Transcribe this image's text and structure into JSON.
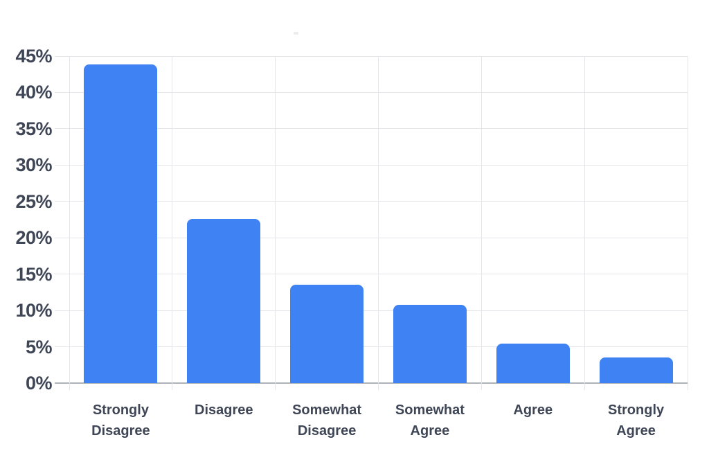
{
  "chart_data": {
    "type": "bar",
    "categories": [
      "Strongly Disagree",
      "Disagree",
      "Somewhat Disagree",
      "Somewhat Agree",
      "Agree",
      "Strongly Agree"
    ],
    "values": [
      43.9,
      22.6,
      13.5,
      10.8,
      5.4,
      3.5
    ],
    "value_unit": "%",
    "title": "",
    "xlabel": "",
    "ylabel": "",
    "ylim": [
      0,
      45
    ],
    "ytick_step": 5,
    "ytick_labels": [
      "0%",
      "5%",
      "10%",
      "15%",
      "20%",
      "25%",
      "30%",
      "35%",
      "40%",
      "45%"
    ],
    "grid": true,
    "legend": "none",
    "colors": {
      "bar": "#3e82f3",
      "gridline": "#e5e6e9",
      "baseline": "#aeb2b9",
      "text": "#3f4656",
      "background": "#ffffff"
    }
  }
}
